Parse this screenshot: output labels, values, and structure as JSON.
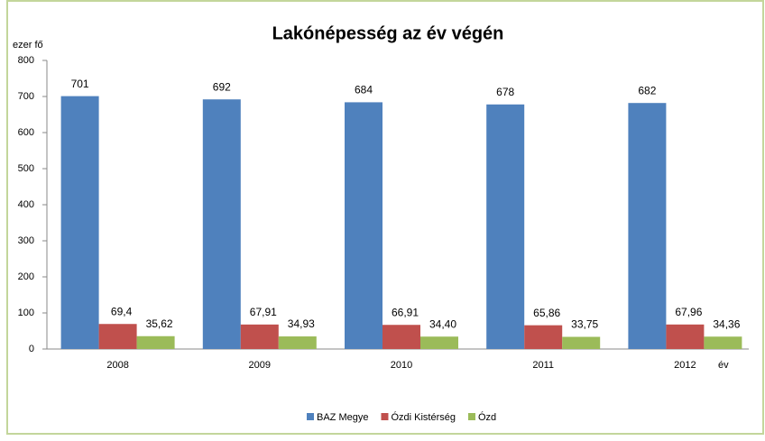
{
  "chart_data": {
    "type": "bar",
    "title": "Lakónépesség az év végén",
    "y_label": "ezer fő",
    "x_label": "év",
    "categories": [
      "2008",
      "2009",
      "2010",
      "2011",
      "2012"
    ],
    "series": [
      {
        "name": "BAZ Megye",
        "color": "#4f81bd",
        "values": [
          701,
          692,
          684,
          678,
          682
        ]
      },
      {
        "name": "Ózdi Kistérség",
        "color": "#c0504d",
        "values": [
          69.4,
          67.91,
          66.91,
          65.86,
          67.96
        ],
        "value_labels": [
          "69,4",
          "67,91",
          "66,91",
          "65,86",
          "67,96"
        ]
      },
      {
        "name": "Ózd",
        "color": "#9bbb59",
        "values": [
          35.62,
          34.93,
          34.4,
          33.75,
          34.36
        ],
        "value_labels": [
          "35,62",
          "34,93",
          "34,40",
          "33,75",
          "34,36"
        ]
      }
    ],
    "ylim": [
      0,
      800
    ],
    "yticks": [
      0,
      100,
      200,
      300,
      400,
      500,
      600,
      700,
      800
    ],
    "grid": false,
    "legend": "bottom"
  }
}
